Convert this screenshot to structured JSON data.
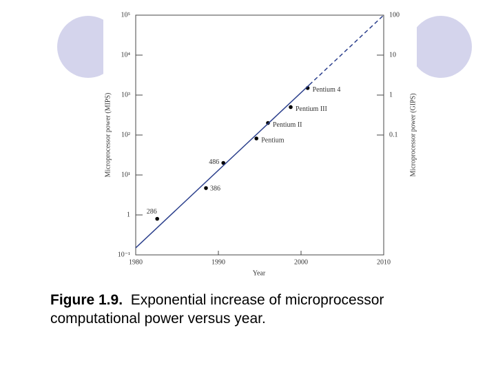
{
  "chart_data": {
    "type": "scatter",
    "xlabel": "Year",
    "ylabel": "Microprocessor power (MIPS)",
    "y2label": "Microprocessor power (GIPS)",
    "xlim": [
      1980,
      2010
    ],
    "xticks": [
      1980,
      1990,
      2000,
      2010
    ],
    "ylim": [
      0.1,
      100000
    ],
    "ylog": true,
    "yticks": [
      {
        "value": 0.1,
        "label": "10⁻¹"
      },
      1,
      {
        "value": 10,
        "label": "10¹"
      },
      {
        "value": 100,
        "label": "10²"
      },
      {
        "value": 1000,
        "label": "10³"
      },
      {
        "value": 10000,
        "label": "10⁴"
      },
      {
        "value": 100000,
        "label": "10⁵"
      }
    ],
    "y2lim": [
      0.0001,
      100
    ],
    "y2ticks": [
      0.1,
      1,
      10,
      100
    ],
    "series": [
      {
        "type": "scatter",
        "color": "#000000",
        "x": [
          1982.6,
          1988.5,
          1990.6,
          1994.6,
          1996,
          1998.75,
          2000.8
        ],
        "values": [
          0.8,
          4.7,
          20,
          82,
          200,
          500,
          1500
        ],
        "labels": [
          "286",
          "386",
          "486",
          "Pentium",
          "Pentium II",
          "Pentium III",
          "Pentium 4"
        ]
      },
      {
        "type": "line",
        "color": "#2b3f8c",
        "dashed": false,
        "x": [
          1980,
          2001
        ],
        "values": [
          0.15,
          1800
        ]
      },
      {
        "type": "line",
        "color": "#2b3f8c",
        "dashed": true,
        "x": [
          2001,
          2010
        ],
        "values": [
          1800,
          100000
        ]
      }
    ]
  },
  "caption": {
    "label": "Figure 1.9.",
    "text": "Exponential increase of microprocessor computational power versus year."
  }
}
